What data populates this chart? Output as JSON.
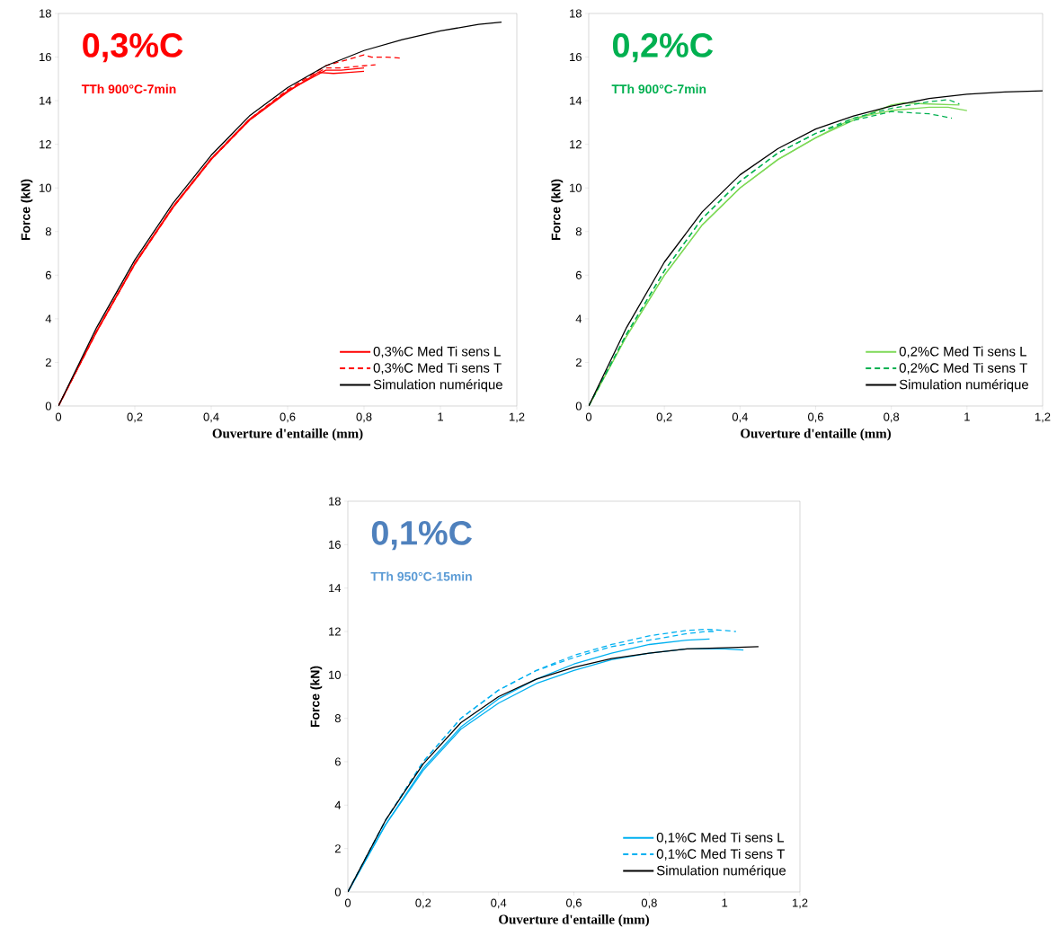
{
  "chart_data": [
    {
      "type": "line",
      "title": "0,3%C",
      "subtitle": "TTh 900°C-7min",
      "xlabel": "Ouverture d'entaille (mm)",
      "ylabel": "Force (kN)",
      "legend": "bottom right",
      "xlim": [
        0,
        1.2
      ],
      "ylim": [
        0,
        18
      ],
      "xticks": [
        0,
        {
          "value": 0.2,
          "label": "0,2"
        },
        {
          "value": 0.4,
          "label": "0,4"
        },
        {
          "value": 0.6,
          "label": "0,6"
        },
        {
          "value": 0.8,
          "label": "0,8"
        },
        1,
        {
          "value": 1.2,
          "label": "1,2"
        }
      ],
      "yticks": [
        0,
        2,
        4,
        6,
        8,
        10,
        12,
        14,
        16,
        18
      ],
      "series": [
        {
          "name": "0,3%C Med Ti sens L",
          "color": "#ff0000",
          "line_style": "solid",
          "x": [
            0,
            0.1,
            0.2,
            0.3,
            0.4,
            0.5,
            0.6,
            0.68,
            0.72,
            0.76,
            0.8
          ],
          "values": [
            0,
            3.4,
            6.5,
            9.1,
            11.3,
            13.1,
            14.4,
            15.3,
            15.25,
            15.3,
            15.35
          ]
        },
        {
          "color": "#ff0000",
          "line_style": "solid",
          "x": [
            0,
            0.1,
            0.2,
            0.3,
            0.4,
            0.5,
            0.6,
            0.7,
            0.74,
            0.8
          ],
          "values": [
            0,
            3.45,
            6.55,
            9.15,
            11.35,
            13.15,
            14.45,
            15.4,
            15.4,
            15.5
          ]
        },
        {
          "name": "0,3%C Med Ti sens T",
          "color": "#ff0000",
          "line_style": "dashed",
          "x": [
            0,
            0.1,
            0.2,
            0.3,
            0.4,
            0.5,
            0.6,
            0.7,
            0.74,
            0.8,
            0.83
          ],
          "values": [
            0,
            3.4,
            6.5,
            9.1,
            11.3,
            13.1,
            14.45,
            15.5,
            15.5,
            15.6,
            15.65
          ]
        },
        {
          "color": "#ff0000",
          "line_style": "dashed",
          "x": [
            0,
            0.1,
            0.2,
            0.3,
            0.4,
            0.5,
            0.6,
            0.7,
            0.76,
            0.8,
            0.82,
            0.86,
            0.9
          ],
          "values": [
            0,
            3.45,
            6.55,
            9.15,
            11.35,
            13.15,
            14.5,
            15.6,
            15.9,
            16.1,
            16.0,
            16.0,
            15.95
          ]
        },
        {
          "name": "Simulation numérique",
          "color": "#000000",
          "line_style": "solid",
          "x": [
            0,
            0.1,
            0.2,
            0.3,
            0.4,
            0.5,
            0.6,
            0.7,
            0.8,
            0.9,
            1.0,
            1.1,
            1.16
          ],
          "values": [
            0,
            3.6,
            6.7,
            9.3,
            11.5,
            13.3,
            14.6,
            15.6,
            16.3,
            16.8,
            17.2,
            17.5,
            17.6
          ]
        }
      ]
    },
    {
      "type": "line",
      "title": "0,2%C",
      "subtitle": "TTh 900°C-7min",
      "xlabel": "Ouverture d'entaille (mm)",
      "ylabel": "Force (kN)",
      "legend": "bottom right",
      "xlim": [
        0,
        1.2
      ],
      "ylim": [
        0,
        18
      ],
      "xticks": [
        0,
        {
          "value": 0.2,
          "label": "0,2"
        },
        {
          "value": 0.4,
          "label": "0,4"
        },
        {
          "value": 0.6,
          "label": "0,6"
        },
        {
          "value": 0.8,
          "label": "0,8"
        },
        1,
        {
          "value": 1.2,
          "label": "1,2"
        }
      ],
      "yticks": [
        0,
        2,
        4,
        6,
        8,
        10,
        12,
        14,
        16,
        18
      ],
      "series": [
        {
          "name": "0,2%C Med Ti sens L",
          "color": "#7ed957",
          "line_style": "solid",
          "x": [
            0,
            0.1,
            0.2,
            0.3,
            0.4,
            0.5,
            0.6,
            0.7,
            0.8,
            0.83,
            0.9,
            0.98
          ],
          "values": [
            0,
            3.2,
            6.0,
            8.3,
            10.0,
            11.3,
            12.3,
            13.1,
            13.8,
            13.9,
            13.85,
            13.8
          ]
        },
        {
          "color": "#7ed957",
          "line_style": "solid",
          "x": [
            0,
            0.1,
            0.2,
            0.3,
            0.4,
            0.5,
            0.6,
            0.7,
            0.8,
            0.9,
            0.95,
            1.0
          ],
          "values": [
            0,
            3.2,
            6.0,
            8.3,
            10.0,
            11.3,
            12.3,
            13.2,
            13.55,
            13.7,
            13.7,
            13.55
          ]
        },
        {
          "name": "0,2%C Med Ti sens T",
          "color": "#00b050",
          "line_style": "dashed",
          "x": [
            0,
            0.1,
            0.2,
            0.3,
            0.4,
            0.5,
            0.6,
            0.7,
            0.8,
            0.9,
            0.96
          ],
          "values": [
            0,
            3.3,
            6.2,
            8.6,
            10.3,
            11.6,
            12.5,
            13.1,
            13.5,
            13.4,
            13.2
          ]
        },
        {
          "color": "#00b050",
          "line_style": "dashed",
          "x": [
            0,
            0.1,
            0.2,
            0.3,
            0.4,
            0.5,
            0.6,
            0.7,
            0.8,
            0.9,
            0.95,
            0.98
          ],
          "values": [
            0,
            3.3,
            6.2,
            8.6,
            10.3,
            11.6,
            12.5,
            13.2,
            13.65,
            13.95,
            14.05,
            13.85
          ]
        },
        {
          "name": "Simulation numérique",
          "color": "#000000",
          "line_style": "solid",
          "x": [
            0,
            0.1,
            0.2,
            0.3,
            0.4,
            0.5,
            0.6,
            0.7,
            0.8,
            0.9,
            1.0,
            1.1,
            1.2
          ],
          "values": [
            0,
            3.6,
            6.6,
            8.9,
            10.6,
            11.8,
            12.7,
            13.3,
            13.75,
            14.1,
            14.3,
            14.4,
            14.45
          ]
        }
      ]
    },
    {
      "type": "line",
      "title": "0,1%C",
      "subtitle": "TTh 950°C-15min",
      "xlabel": "Ouverture d'entaille (mm)",
      "ylabel": "Force (kN)",
      "legend": "bottom right",
      "xlim": [
        0,
        1.2
      ],
      "ylim": [
        0,
        18
      ],
      "xticks": [
        0,
        {
          "value": 0.2,
          "label": "0,2"
        },
        {
          "value": 0.4,
          "label": "0,4"
        },
        {
          "value": 0.6,
          "label": "0,6"
        },
        {
          "value": 0.8,
          "label": "0,8"
        },
        1,
        {
          "value": 1.2,
          "label": "1,2"
        }
      ],
      "yticks": [
        0,
        2,
        4,
        6,
        8,
        10,
        12,
        14,
        16,
        18
      ],
      "series": [
        {
          "name": "0,1%C Med Ti sens L",
          "color": "#00b0f0",
          "line_style": "solid",
          "x": [
            0,
            0.1,
            0.2,
            0.3,
            0.4,
            0.5,
            0.6,
            0.7,
            0.8,
            0.9,
            1.0,
            1.05
          ],
          "values": [
            0,
            3.1,
            5.6,
            7.5,
            8.7,
            9.6,
            10.2,
            10.7,
            11.0,
            11.2,
            11.2,
            11.15
          ]
        },
        {
          "color": "#00b0f0",
          "line_style": "solid",
          "x": [
            0,
            0.1,
            0.2,
            0.3,
            0.4,
            0.5,
            0.6,
            0.7,
            0.8,
            0.9,
            0.96
          ],
          "values": [
            0,
            3.1,
            5.7,
            7.6,
            8.9,
            9.8,
            10.5,
            11.0,
            11.4,
            11.6,
            11.65
          ]
        },
        {
          "name": "0,1%C Med Ti sens T",
          "color": "#00b0f0",
          "line_style": "dashed",
          "x": [
            0,
            0.1,
            0.2,
            0.3,
            0.4,
            0.5,
            0.6,
            0.7,
            0.8,
            0.9,
            0.95,
            1.0,
            1.03
          ],
          "values": [
            0,
            3.3,
            6.0,
            8.0,
            9.3,
            10.2,
            10.9,
            11.4,
            11.8,
            12.05,
            12.1,
            12.05,
            12.0
          ]
        },
        {
          "color": "#00b0f0",
          "line_style": "dashed",
          "x": [
            0,
            0.1,
            0.2,
            0.3,
            0.4,
            0.5,
            0.6,
            0.7,
            0.8,
            0.9,
            0.95,
            0.98
          ],
          "values": [
            0,
            3.3,
            6.0,
            8.0,
            9.3,
            10.2,
            10.8,
            11.3,
            11.6,
            11.9,
            12.0,
            12.0
          ]
        },
        {
          "name": "Simulation numérique",
          "color": "#000000",
          "line_style": "solid",
          "x": [
            0,
            0.1,
            0.2,
            0.3,
            0.4,
            0.5,
            0.6,
            0.7,
            0.8,
            0.9,
            1.0,
            1.09
          ],
          "values": [
            0,
            3.3,
            5.9,
            7.8,
            9.0,
            9.8,
            10.35,
            10.75,
            11.0,
            11.2,
            11.25,
            11.3
          ]
        }
      ]
    }
  ]
}
